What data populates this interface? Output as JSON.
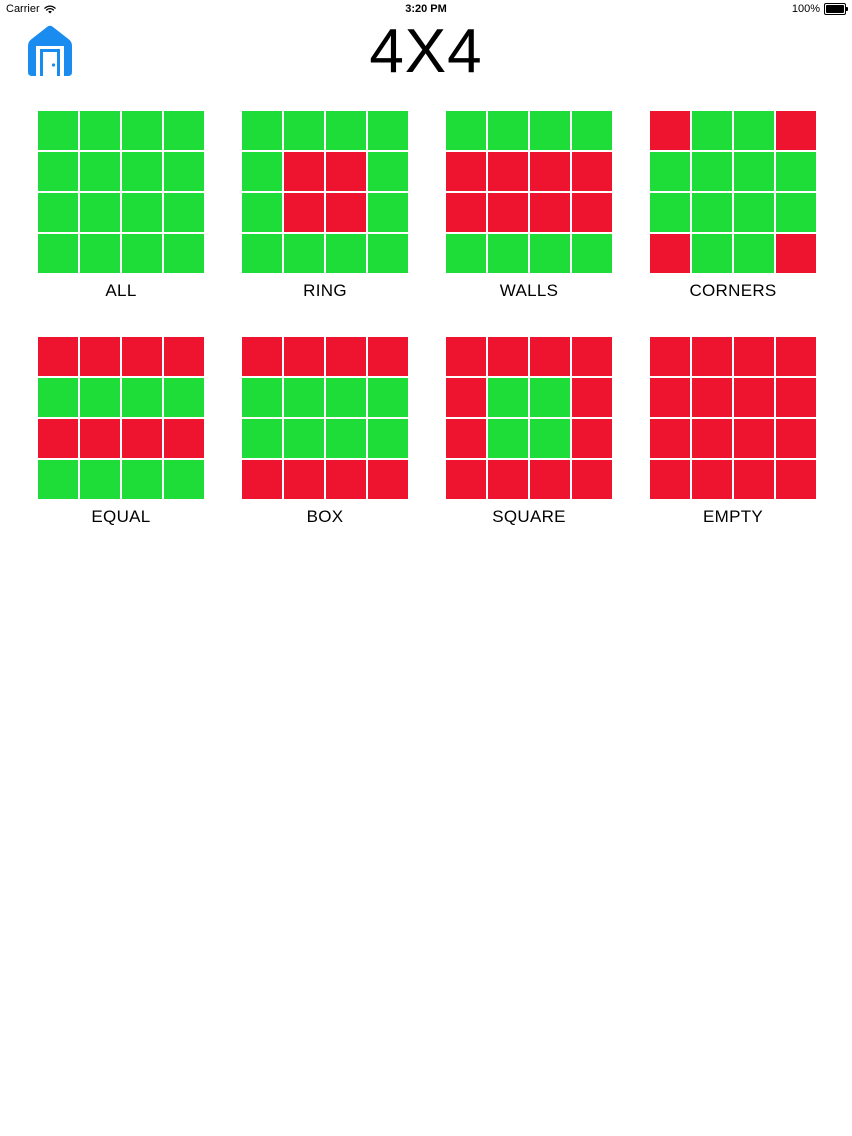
{
  "status_bar": {
    "carrier": "Carrier",
    "time": "3:20 PM",
    "battery_percent": "100%",
    "battery_level": 1.0,
    "wifi_icon": "wifi-icon"
  },
  "header": {
    "title": "4X4",
    "home_icon": "home-door-icon",
    "home_color": "#1a8cf0"
  },
  "colors": {
    "on": "#1fdd38",
    "off": "#ee1430"
  },
  "patterns": [
    {
      "id": "all",
      "label": "ALL",
      "grid": [
        [
          1,
          1,
          1,
          1
        ],
        [
          1,
          1,
          1,
          1
        ],
        [
          1,
          1,
          1,
          1
        ],
        [
          1,
          1,
          1,
          1
        ]
      ]
    },
    {
      "id": "ring",
      "label": "RING",
      "grid": [
        [
          1,
          1,
          1,
          1
        ],
        [
          1,
          0,
          0,
          1
        ],
        [
          1,
          0,
          0,
          1
        ],
        [
          1,
          1,
          1,
          1
        ]
      ]
    },
    {
      "id": "walls",
      "label": "WALLS",
      "grid": [
        [
          1,
          1,
          1,
          1
        ],
        [
          0,
          0,
          0,
          0
        ],
        [
          0,
          0,
          0,
          0
        ],
        [
          1,
          1,
          1,
          1
        ]
      ]
    },
    {
      "id": "corners",
      "label": "CORNERS",
      "grid": [
        [
          0,
          1,
          1,
          0
        ],
        [
          1,
          1,
          1,
          1
        ],
        [
          1,
          1,
          1,
          1
        ],
        [
          0,
          1,
          1,
          0
        ]
      ]
    },
    {
      "id": "equal",
      "label": "EQUAL",
      "grid": [
        [
          0,
          0,
          0,
          0
        ],
        [
          1,
          1,
          1,
          1
        ],
        [
          0,
          0,
          0,
          0
        ],
        [
          1,
          1,
          1,
          1
        ]
      ]
    },
    {
      "id": "box",
      "label": "BOX",
      "grid": [
        [
          0,
          0,
          0,
          0
        ],
        [
          1,
          1,
          1,
          1
        ],
        [
          1,
          1,
          1,
          1
        ],
        [
          0,
          0,
          0,
          0
        ]
      ]
    },
    {
      "id": "square",
      "label": "SQUARE",
      "grid": [
        [
          0,
          0,
          0,
          0
        ],
        [
          0,
          1,
          1,
          0
        ],
        [
          0,
          1,
          1,
          0
        ],
        [
          0,
          0,
          0,
          0
        ]
      ]
    },
    {
      "id": "empty",
      "label": "EMPTY",
      "grid": [
        [
          0,
          0,
          0,
          0
        ],
        [
          0,
          0,
          0,
          0
        ],
        [
          0,
          0,
          0,
          0
        ],
        [
          0,
          0,
          0,
          0
        ]
      ]
    }
  ]
}
